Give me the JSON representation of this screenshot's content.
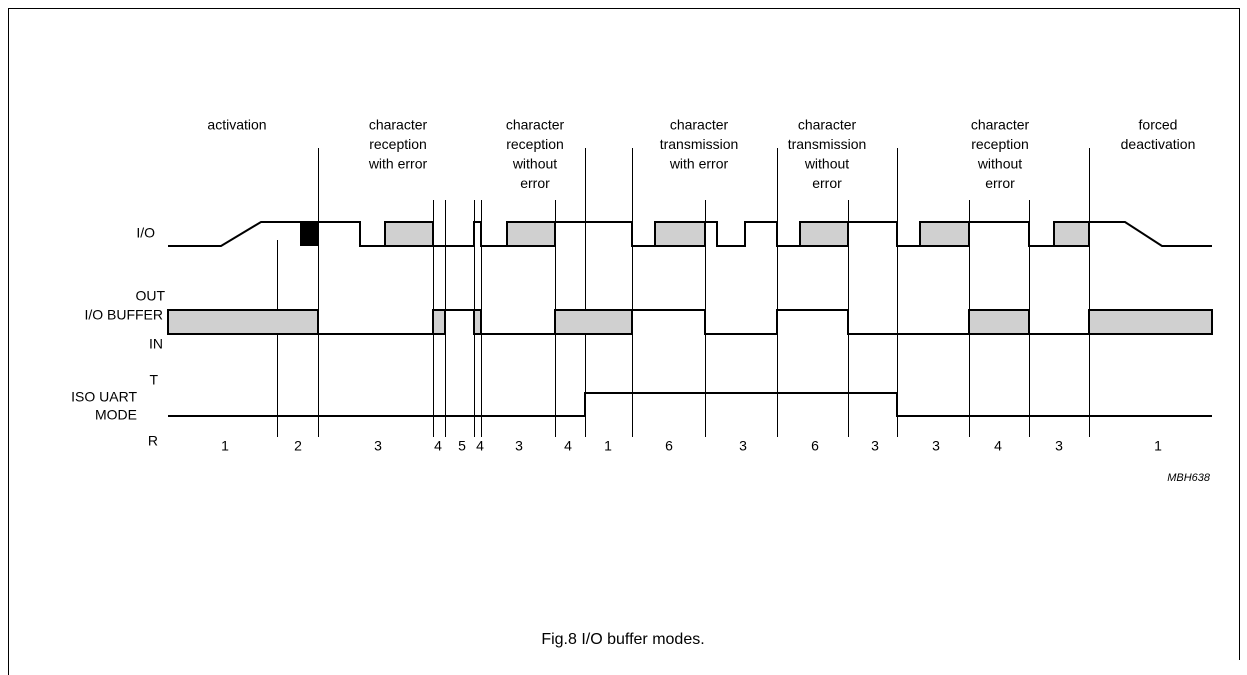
{
  "phases": [
    [
      "activation"
    ],
    [
      "character",
      "reception",
      "with error"
    ],
    [
      "character",
      "reception",
      "without",
      "error"
    ],
    [
      "character",
      "transmission",
      "with error"
    ],
    [
      "character",
      "transmission",
      "without",
      "error"
    ],
    [
      "character",
      "reception",
      "without",
      "error"
    ],
    [
      "forced",
      "deactivation"
    ]
  ],
  "signals": {
    "io": "I/O",
    "out": "OUT",
    "buffer": "I/O BUFFER",
    "in": "IN",
    "t": "T",
    "uart": "ISO UART",
    "mode": "MODE",
    "r": "R"
  },
  "steps": [
    1,
    2,
    3,
    4,
    5,
    4,
    3,
    4,
    1,
    6,
    3,
    6,
    3,
    3,
    4,
    3,
    1
  ],
  "code": "MBH638",
  "caption": "Fig.8  I/O buffer modes."
}
